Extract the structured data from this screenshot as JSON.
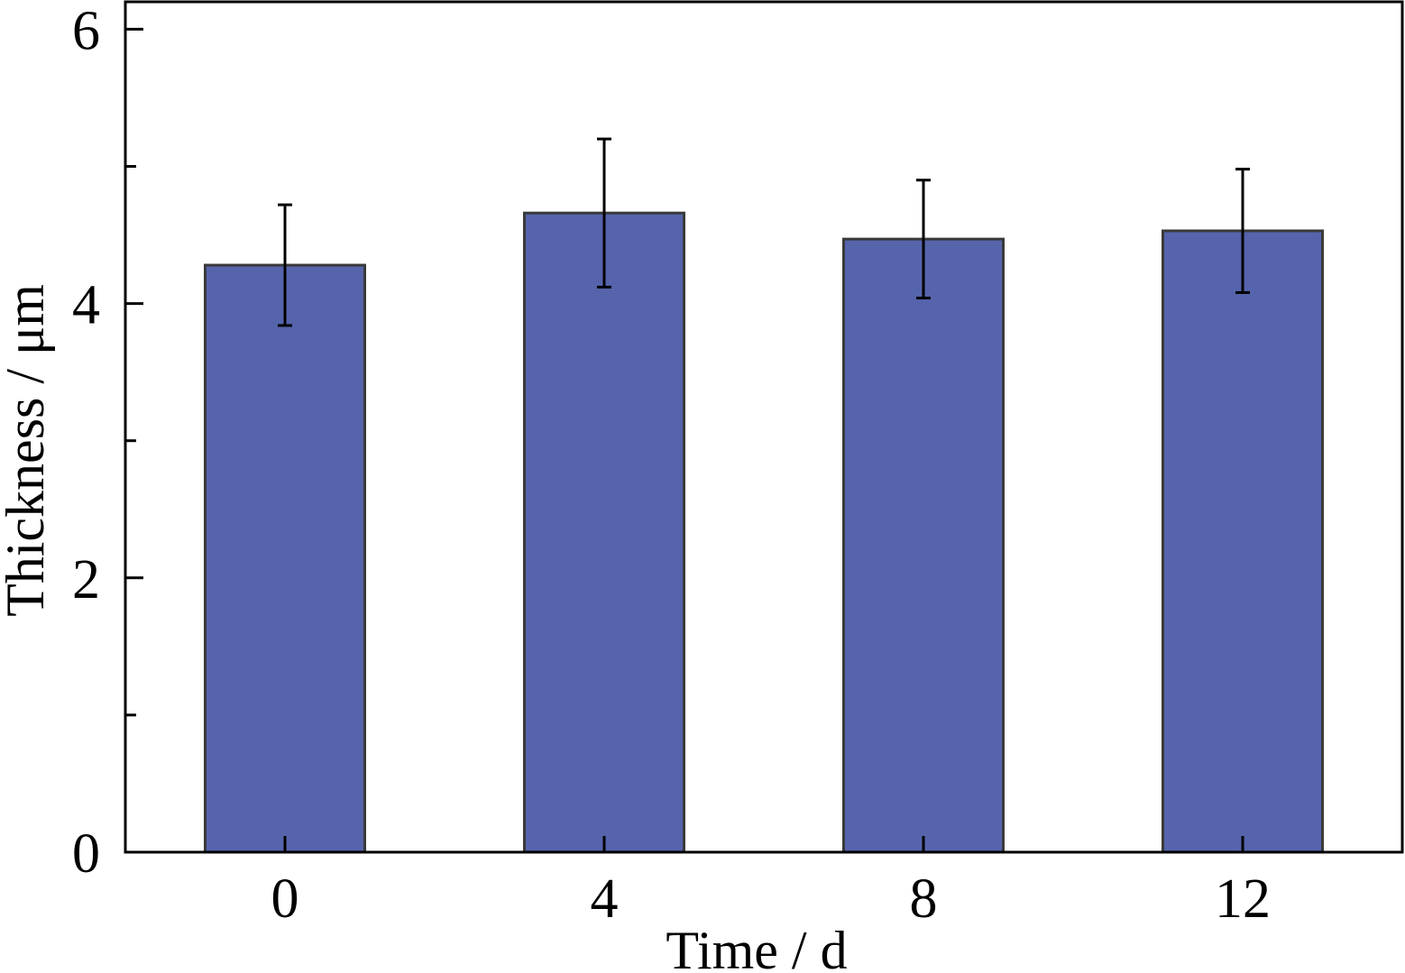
{
  "chart_data": {
    "type": "bar",
    "categories": [
      "0",
      "4",
      "8",
      "12"
    ],
    "values": [
      4.28,
      4.66,
      4.47,
      4.53
    ],
    "errors": [
      0.44,
      0.54,
      0.43,
      0.45
    ],
    "title": "",
    "xlabel": "Time / d",
    "ylabel": "Thickness / μm",
    "ylim": [
      0,
      6.2
    ],
    "yticks_major": [
      0,
      2,
      4,
      6
    ],
    "yticks_minor": [
      1,
      3,
      5
    ],
    "grid": false,
    "colors": {
      "bar_fill": "#5664ac",
      "bar_edge": "#3a3a3a",
      "axis": "#000000"
    }
  }
}
